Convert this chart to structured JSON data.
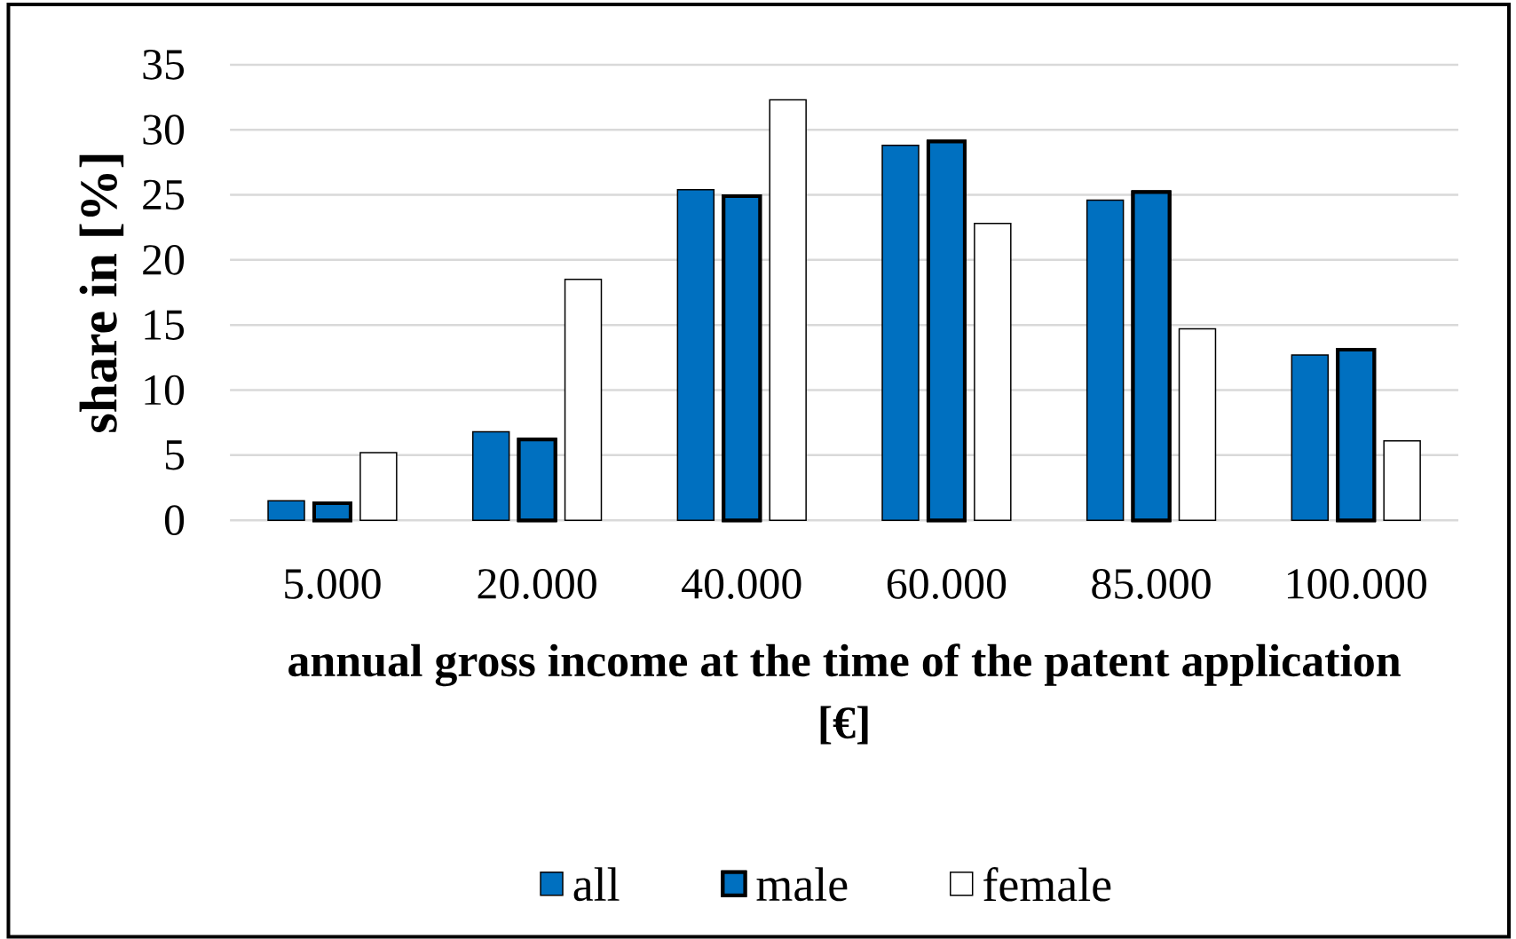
{
  "chart_data": {
    "type": "bar",
    "xlabel": "annual gross income at the time of the patent application [€]",
    "ylabel": "share in [%]",
    "categories": [
      "5.000",
      "20.000",
      "40.000",
      "60.000",
      "85.000",
      "100.000"
    ],
    "series": [
      {
        "name": "all",
        "color": "#0070c0",
        "values": [
          1.5,
          6.8,
          25.4,
          28.8,
          24.6,
          12.7
        ]
      },
      {
        "name": "male",
        "color": "#0070c0",
        "values": [
          1.3,
          6.2,
          24.9,
          29.1,
          25.2,
          13.1
        ]
      },
      {
        "name": "female",
        "color": "#ffffff",
        "values": [
          5.2,
          18.5,
          32.3,
          22.8,
          14.7,
          6.1
        ]
      }
    ],
    "ylim": [
      0,
      35
    ],
    "yticks": [
      0,
      5,
      10,
      15,
      20,
      25,
      30,
      35
    ],
    "grid": "y",
    "legend": "bottom"
  }
}
